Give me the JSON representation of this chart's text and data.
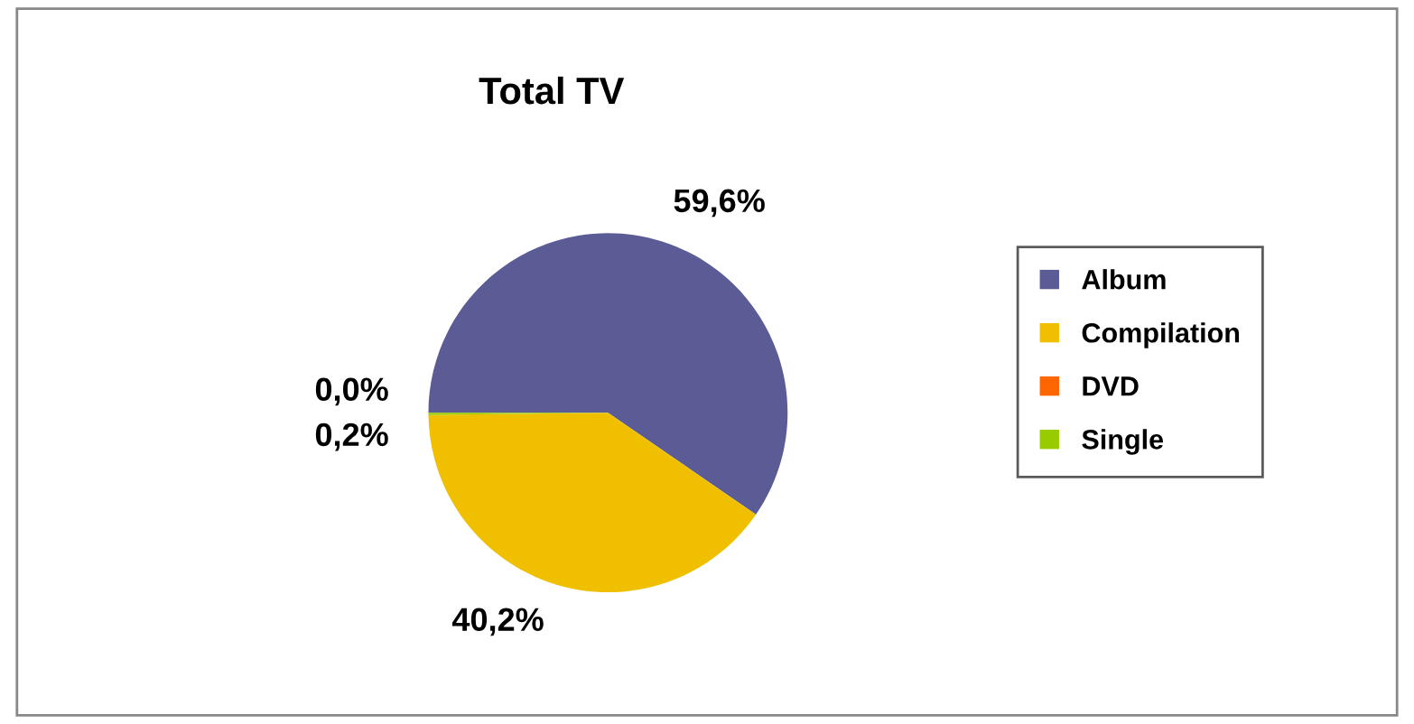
{
  "chart_data": {
    "type": "pie",
    "title": "Total TV",
    "categories": [
      "Album",
      "Compilation",
      "DVD",
      "Single"
    ],
    "values": [
      59.6,
      40.2,
      0.0,
      0.2
    ],
    "value_labels": [
      "59,6%",
      "40,2%",
      "0,0%",
      "0,2%"
    ],
    "colors": [
      "#5b5b96",
      "#f0c000",
      "#ff6600",
      "#99cc00"
    ],
    "legend": "right"
  }
}
